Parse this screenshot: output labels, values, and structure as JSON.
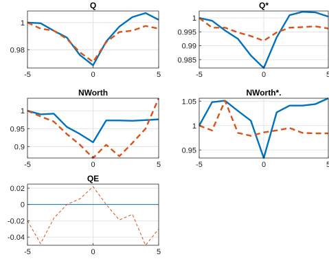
{
  "chart_data": [
    {
      "type": "line",
      "title": "Q",
      "xlim": [
        -5,
        5
      ],
      "ylim": [
        0.9665,
        1.0085
      ],
      "xticks": [
        "-5",
        "0",
        "5"
      ],
      "yticks": [
        "0.98",
        "1"
      ],
      "grid": true,
      "series": [
        {
          "style": "solid",
          "color": "#0072bd",
          "x": [
            -5,
            -4,
            -3,
            -2,
            -1,
            0,
            1,
            2,
            3,
            4,
            5
          ],
          "y": [
            1.0,
            0.9995,
            0.994,
            0.989,
            0.976,
            0.9685,
            0.986,
            0.997,
            1.004,
            1.007,
            1.002
          ]
        },
        {
          "style": "dashed",
          "color": "#d95319",
          "x": [
            -5,
            -4,
            -3,
            -2,
            -1,
            0,
            1,
            2,
            3,
            4,
            5
          ],
          "y": [
            1.0,
            0.9955,
            0.994,
            0.988,
            0.978,
            0.971,
            0.9855,
            0.993,
            0.994,
            0.9975,
            0.9955
          ]
        }
      ]
    },
    {
      "type": "line",
      "title": "Q*",
      "xlim": [
        -5,
        5
      ],
      "ylim": [
        0.982,
        1.0025
      ],
      "xticks": [
        "-5",
        "0",
        "5"
      ],
      "yticks": [
        "0.985",
        "0.99",
        "0.995",
        "1"
      ],
      "grid": true,
      "series": [
        {
          "style": "solid",
          "color": "#0072bd",
          "x": [
            -5,
            -4,
            -3,
            -2,
            -1,
            0,
            1,
            2,
            3,
            4,
            5
          ],
          "y": [
            1.0,
            0.999,
            0.9955,
            0.9925,
            0.9865,
            0.982,
            0.993,
            1.001,
            1.0022,
            1.002,
            1.0005
          ]
        },
        {
          "style": "dashed",
          "color": "#d95319",
          "x": [
            -5,
            -4,
            -3,
            -2,
            -1,
            0,
            1,
            2,
            3,
            4,
            5
          ],
          "y": [
            1.0,
            0.9965,
            0.9965,
            0.9948,
            0.9935,
            0.9918,
            0.9948,
            0.9965,
            0.9967,
            0.997,
            0.9962
          ]
        }
      ]
    },
    {
      "type": "line",
      "title": "NWorth",
      "xlim": [
        -5,
        5
      ],
      "ylim": [
        0.868,
        1.035
      ],
      "xticks": [
        "-5",
        "0",
        "5"
      ],
      "yticks": [
        "0.9",
        "0.95",
        "1"
      ],
      "grid": true,
      "series": [
        {
          "style": "solid",
          "color": "#0072bd",
          "x": [
            -5,
            -4,
            -3,
            -2,
            -1,
            0,
            1,
            2,
            3,
            4,
            5
          ],
          "y": [
            1.0,
            0.99,
            0.992,
            0.955,
            0.935,
            0.912,
            0.973,
            0.973,
            0.972,
            0.974,
            0.976
          ]
        },
        {
          "style": "dashed",
          "color": "#d95319",
          "x": [
            -5,
            -4,
            -3,
            -2,
            -1,
            0,
            1,
            2,
            3,
            4,
            5
          ],
          "y": [
            1.0,
            0.984,
            0.97,
            0.935,
            0.905,
            0.868,
            0.905,
            0.873,
            0.91,
            0.95,
            1.035
          ]
        }
      ]
    },
    {
      "type": "line",
      "title": "NWorth*.",
      "xlim": [
        -5,
        5
      ],
      "ylim": [
        0.9335,
        1.056
      ],
      "xticks": [
        "-5",
        "0",
        "5"
      ],
      "yticks": [
        "0.95",
        "1",
        "1.05"
      ],
      "grid": true,
      "series": [
        {
          "style": "solid",
          "color": "#0072bd",
          "x": [
            -5,
            -4,
            -3,
            -2,
            -1,
            0,
            1,
            2,
            3,
            4,
            5
          ],
          "y": [
            1.0,
            1.048,
            1.051,
            1.03,
            1.01,
            0.9335,
            1.027,
            1.041,
            1.041,
            1.044,
            1.056
          ]
        },
        {
          "style": "dashed",
          "color": "#d95319",
          "x": [
            -5,
            -4,
            -3,
            -2,
            -1,
            0,
            1,
            2,
            3,
            4,
            5
          ],
          "y": [
            1.0,
            0.99,
            1.051,
            0.985,
            0.979,
            0.986,
            0.99,
            0.995,
            0.985,
            0.984,
            0.984
          ]
        }
      ]
    },
    {
      "type": "line",
      "title": "QE",
      "xlim": [
        -5,
        5
      ],
      "ylim": [
        -0.05,
        0.025
      ],
      "xticks": [
        "-5",
        "0",
        "5"
      ],
      "yticks": [
        "-0.04",
        "-0.02",
        "0",
        "0.02"
      ],
      "grid": true,
      "series": [
        {
          "style": "solid-thin",
          "color": "#0072bd",
          "x": [
            -5,
            5
          ],
          "y": [
            0,
            0
          ]
        },
        {
          "style": "dashed-thin",
          "color": "#d95319",
          "x": [
            -5,
            -4,
            -3,
            -2,
            -1,
            0,
            1,
            2,
            3,
            4,
            5
          ],
          "y": [
            -0.02,
            -0.048,
            -0.017,
            0.0,
            0.007,
            0.022,
            0.0,
            -0.019,
            -0.012,
            -0.05,
            -0.03
          ]
        }
      ]
    }
  ]
}
